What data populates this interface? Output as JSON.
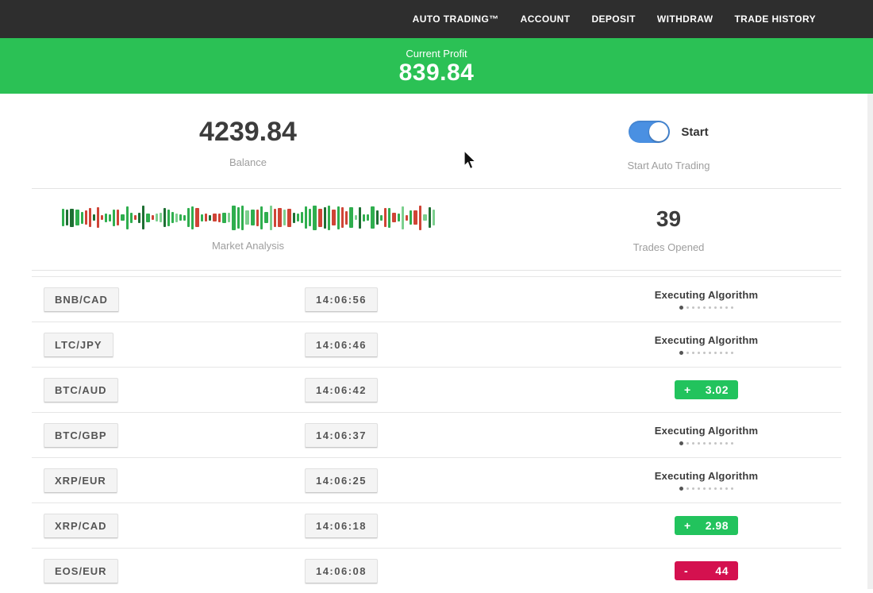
{
  "nav": {
    "items": [
      {
        "key": "auto-trading",
        "label": "AUTO TRADING™"
      },
      {
        "key": "account",
        "label": "ACCOUNT"
      },
      {
        "key": "deposit",
        "label": "DEPOSIT"
      },
      {
        "key": "withdraw",
        "label": "WITHDRAW"
      },
      {
        "key": "trade-history",
        "label": "TRADE HISTORY"
      }
    ]
  },
  "banner": {
    "label": "Current Profit",
    "value": "839.84"
  },
  "summary": {
    "balance": {
      "value": "4239.84",
      "label": "Balance"
    },
    "auto_trading": {
      "toggle_label": "Start",
      "label": "Start Auto Trading",
      "toggle_on": true
    },
    "market_analysis": {
      "label": "Market Analysis"
    },
    "trades_opened": {
      "value": "39",
      "label": "Trades Opened"
    }
  },
  "loader": {
    "dot_count": 10
  },
  "trades": [
    {
      "pair": "BNB/CAD",
      "time": "14:06:56",
      "status": "executing",
      "status_label": "Executing Algorithm"
    },
    {
      "pair": "LTC/JPY",
      "time": "14:06:46",
      "status": "executing",
      "status_label": "Executing Algorithm"
    },
    {
      "pair": "BTC/AUD",
      "time": "14:06:42",
      "status": "profit",
      "sign": "+",
      "amount": "3.02"
    },
    {
      "pair": "BTC/GBP",
      "time": "14:06:37",
      "status": "executing",
      "status_label": "Executing Algorithm"
    },
    {
      "pair": "XRP/EUR",
      "time": "14:06:25",
      "status": "executing",
      "status_label": "Executing Algorithm"
    },
    {
      "pair": "XRP/CAD",
      "time": "14:06:18",
      "status": "profit",
      "sign": "+",
      "amount": "2.98"
    },
    {
      "pair": "EOS/EUR",
      "time": "14:06:08",
      "status": "loss",
      "sign": "-",
      "amount": "44"
    }
  ],
  "market_chart": {
    "bar_count": 86,
    "seed": 47,
    "colors": {
      "green": "#2fae4e",
      "dark_green": "#1e6f33",
      "red": "#cf4436",
      "light_green": "#7ccf8e"
    }
  },
  "colors": {
    "banner_green": "#2bc155",
    "profit_green": "#22c35d",
    "loss_red": "#d4114f",
    "toggle_blue": "#4a90e2",
    "nav_bg": "#2e2e2e"
  }
}
